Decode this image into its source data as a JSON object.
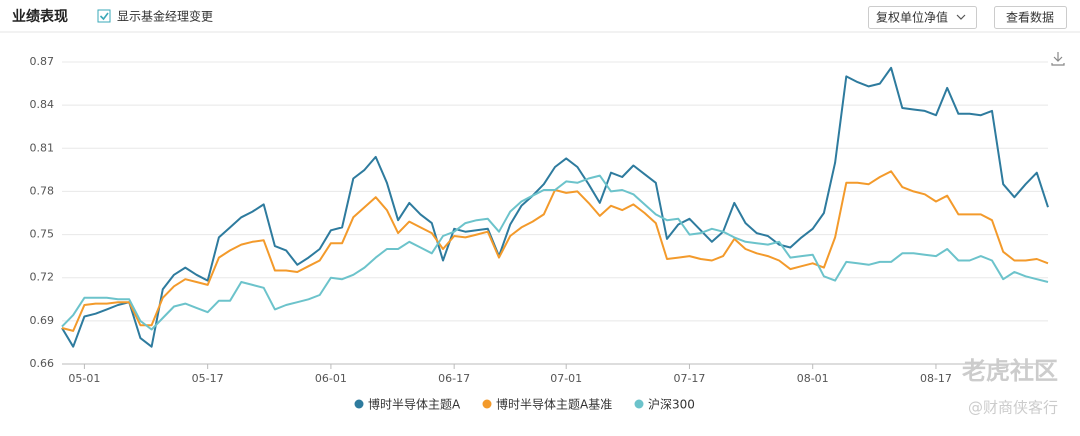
{
  "header": {
    "title": "业绩表现",
    "checkbox_label": "显示基金经理变更",
    "dropdown": "复权单位净值",
    "button": "查看数据"
  },
  "watermark": {
    "brand": "老虎社区",
    "author": "@财商侠客行"
  },
  "chart_data": {
    "type": "line",
    "categories": [
      null,
      null,
      "05-01",
      null,
      null,
      null,
      null,
      null,
      null,
      null,
      null,
      null,
      null,
      "05-17",
      null,
      null,
      null,
      null,
      null,
      null,
      null,
      null,
      null,
      null,
      "06-01",
      null,
      null,
      null,
      null,
      null,
      null,
      null,
      null,
      null,
      null,
      "06-17",
      null,
      null,
      null,
      null,
      null,
      null,
      null,
      null,
      null,
      "07-01",
      null,
      null,
      null,
      null,
      null,
      null,
      null,
      null,
      null,
      null,
      "07-17",
      null,
      null,
      null,
      null,
      null,
      null,
      null,
      null,
      null,
      null,
      "08-01",
      null,
      null,
      null,
      null,
      null,
      null,
      null,
      null,
      null,
      null,
      "08-17",
      null,
      null,
      null,
      null,
      null,
      null,
      null,
      null,
      null,
      null
    ],
    "ylim": [
      0.66,
      0.87
    ],
    "yticks": [
      0.66,
      0.69,
      0.72,
      0.75,
      0.78,
      0.81,
      0.84,
      0.87
    ],
    "grid": true,
    "series": [
      {
        "name": "博时半导体主题A",
        "color": "#2e7b9e",
        "values": [
          0.685,
          0.672,
          0.693,
          0.695,
          0.698,
          0.701,
          0.703,
          0.678,
          0.672,
          0.712,
          0.722,
          0.727,
          0.722,
          0.718,
          0.748,
          0.755,
          0.762,
          0.766,
          0.771,
          0.742,
          0.739,
          0.729,
          0.734,
          0.74,
          0.753,
          0.755,
          0.789,
          0.795,
          0.804,
          0.786,
          0.76,
          0.772,
          0.764,
          0.758,
          0.732,
          0.754,
          0.752,
          0.753,
          0.754,
          0.735,
          0.757,
          0.77,
          0.777,
          0.785,
          0.797,
          0.803,
          0.797,
          0.785,
          0.772,
          0.793,
          0.79,
          0.798,
          0.792,
          0.786,
          0.747,
          0.757,
          0.761,
          0.753,
          0.745,
          0.752,
          0.772,
          0.758,
          0.751,
          0.749,
          0.743,
          0.741,
          0.748,
          0.754,
          0.765,
          0.8,
          0.86,
          0.856,
          0.853,
          0.855,
          0.866,
          0.838,
          0.837,
          0.836,
          0.833,
          0.852,
          0.834,
          0.834,
          0.833,
          0.836,
          0.785,
          0.776,
          0.785,
          0.793,
          0.769
        ]
      },
      {
        "name": "博时半导体主题A基准",
        "color": "#f39a2b",
        "values": [
          0.685,
          0.683,
          0.701,
          0.702,
          0.702,
          0.703,
          0.703,
          0.687,
          0.687,
          0.706,
          0.714,
          0.719,
          0.717,
          0.715,
          0.734,
          0.739,
          0.743,
          0.745,
          0.746,
          0.725,
          0.725,
          0.724,
          0.728,
          0.732,
          0.744,
          0.744,
          0.762,
          0.769,
          0.776,
          0.767,
          0.751,
          0.759,
          0.755,
          0.751,
          0.74,
          0.749,
          0.748,
          0.75,
          0.752,
          0.734,
          0.749,
          0.755,
          0.759,
          0.764,
          0.781,
          0.779,
          0.78,
          0.772,
          0.763,
          0.77,
          0.767,
          0.771,
          0.765,
          0.758,
          0.733,
          0.734,
          0.735,
          0.733,
          0.732,
          0.735,
          0.747,
          0.74,
          0.737,
          0.735,
          0.732,
          0.726,
          0.728,
          0.73,
          0.727,
          0.748,
          0.786,
          0.786,
          0.785,
          0.79,
          0.794,
          0.783,
          0.78,
          0.778,
          0.773,
          0.777,
          0.764,
          0.764,
          0.764,
          0.76,
          0.738,
          0.732,
          0.732,
          0.733,
          0.73
        ]
      },
      {
        "name": "沪深300",
        "color": "#6cc3cb",
        "values": [
          0.686,
          0.694,
          0.706,
          0.706,
          0.706,
          0.705,
          0.705,
          0.69,
          0.684,
          0.692,
          0.7,
          0.702,
          0.699,
          0.696,
          0.704,
          0.704,
          0.717,
          0.715,
          0.713,
          0.698,
          0.701,
          0.703,
          0.705,
          0.708,
          0.72,
          0.719,
          0.722,
          0.727,
          0.734,
          0.74,
          0.74,
          0.745,
          0.741,
          0.737,
          0.749,
          0.752,
          0.758,
          0.76,
          0.761,
          0.752,
          0.766,
          0.773,
          0.777,
          0.781,
          0.781,
          0.787,
          0.786,
          0.789,
          0.791,
          0.78,
          0.781,
          0.778,
          0.771,
          0.764,
          0.76,
          0.761,
          0.75,
          0.751,
          0.754,
          0.752,
          0.748,
          0.745,
          0.744,
          0.743,
          0.745,
          0.734,
          0.735,
          0.736,
          0.721,
          0.718,
          0.731,
          0.73,
          0.729,
          0.731,
          0.731,
          0.737,
          0.737,
          0.736,
          0.735,
          0.74,
          0.732,
          0.732,
          0.735,
          0.732,
          0.719,
          0.724,
          0.721,
          0.719,
          0.717
        ]
      }
    ]
  }
}
